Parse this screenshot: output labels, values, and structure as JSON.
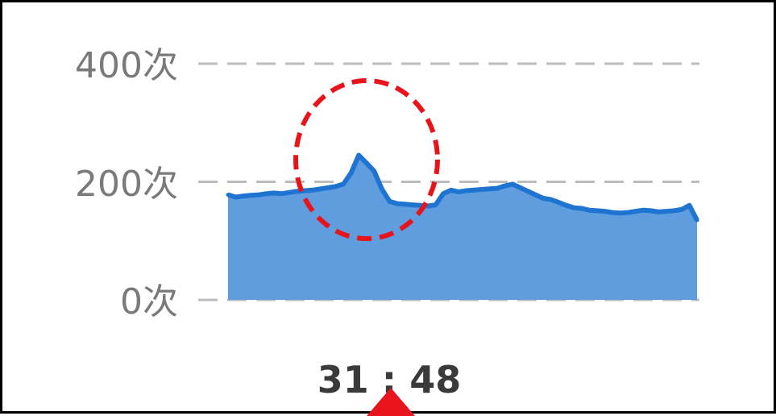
{
  "colors": {
    "area_fill": "#5f9ddf",
    "line": "#1f74d1",
    "grid": "#bdbdbd",
    "highlight_circle": "#e8141b",
    "pointer_arrow": "#e8141b"
  },
  "chart_data": {
    "type": "area",
    "title": "",
    "xlabel": "",
    "ylabel": "",
    "ylim": [
      0,
      400
    ],
    "y_ticks": [
      {
        "value": 0,
        "label": "0次"
      },
      {
        "value": 200,
        "label": "200次"
      },
      {
        "value": 400,
        "label": "400次"
      }
    ],
    "x_label_text": "31 : 48",
    "grid": "horizontal dashed",
    "series": [
      {
        "values": [
          178,
          174,
          176,
          177,
          178,
          180,
          181,
          180,
          182,
          184,
          185,
          186,
          188,
          190,
          192,
          196,
          215,
          245,
          232,
          218,
          188,
          167,
          163,
          162,
          161,
          160,
          159,
          161,
          180,
          186,
          183,
          185,
          186,
          187,
          188,
          189,
          193,
          196,
          190,
          184,
          178,
          172,
          170,
          165,
          160,
          156,
          155,
          152,
          151,
          150,
          148,
          147,
          148,
          150,
          152,
          151,
          149,
          150,
          151,
          153,
          160,
          135
        ]
      }
    ],
    "annotations": [
      {
        "type": "dashed-circle",
        "target": "spike"
      },
      {
        "type": "arrow",
        "target": "current-time"
      }
    ]
  }
}
